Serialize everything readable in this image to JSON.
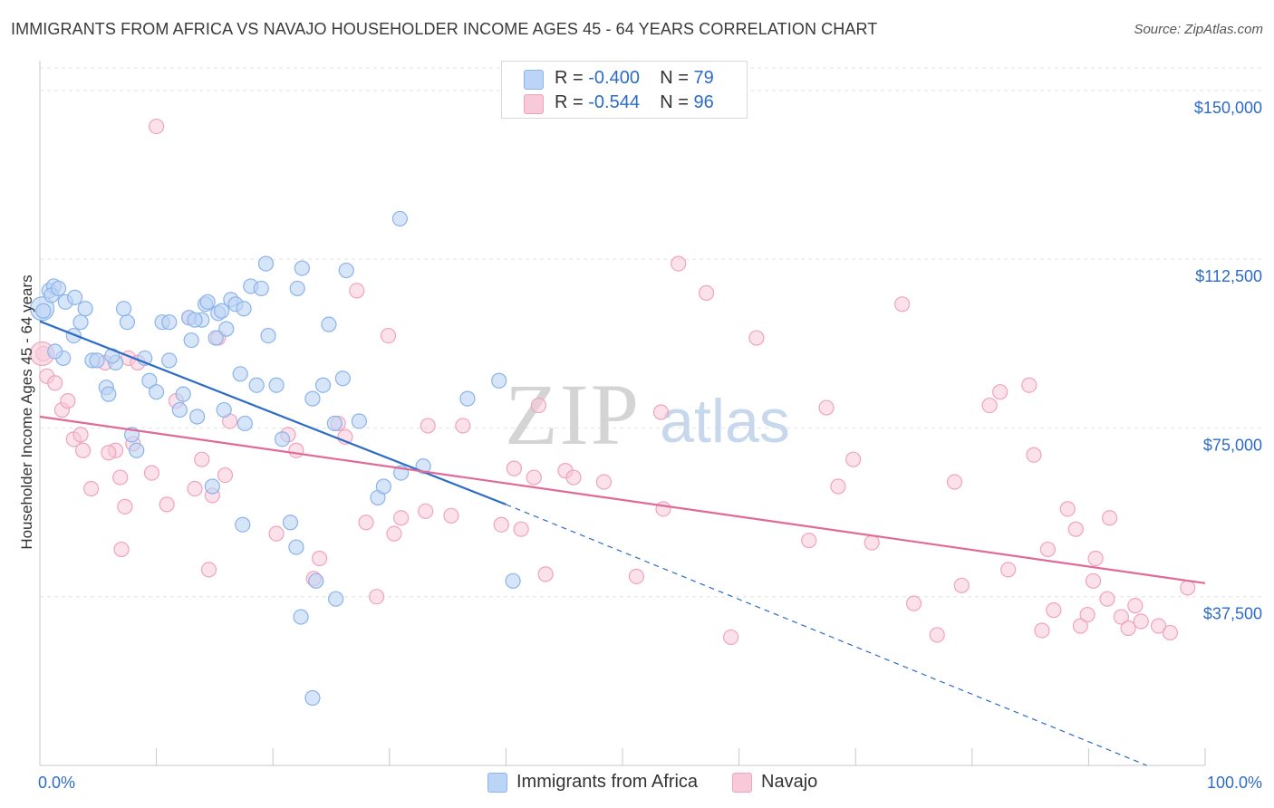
{
  "title": "IMMIGRANTS FROM AFRICA VS NAVAJO HOUSEHOLDER INCOME AGES 45 - 64 YEARS CORRELATION CHART",
  "source": "Source: ZipAtlas.com",
  "watermark": {
    "zip": "ZIP",
    "atlas": "atlas"
  },
  "colors": {
    "blue": "#8ab4ea",
    "blue_fill": "#bcd4f5",
    "blue_line": "#2d6cc4",
    "pink": "#f0a3bd",
    "pink_fill": "#f8c9d8",
    "pink_line": "#e06a97",
    "axis_text": "#2d6cc4"
  },
  "legend": {
    "rows": [
      {
        "r_label": "R =",
        "r_value": "-0.400",
        "n_label": "N =",
        "n_value": "79",
        "color": "#bcd4f5"
      },
      {
        "r_label": "R =",
        "r_value": "-0.544",
        "n_label": "N =",
        "n_value": "96",
        "color": "#f8c9d8"
      }
    ]
  },
  "bottom_legend": {
    "series1": "Immigrants from Africa",
    "series2": "Navajo"
  },
  "chart_data": {
    "type": "scatter",
    "title": "IMMIGRANTS FROM AFRICA VS NAVAJO HOUSEHOLDER INCOME AGES 45 - 64 YEARS CORRELATION CHART",
    "xlabel": "",
    "ylabel": "Householder Income Ages 45 - 64 years",
    "x_tick_labels": [
      "0.0%",
      "100.0%"
    ],
    "y_tick_labels": [
      "$37,500",
      "$75,000",
      "$112,500",
      "$150,000"
    ],
    "y_ticks": [
      37500,
      75000,
      112500,
      150000
    ],
    "xlim": [
      0,
      100
    ],
    "ylim": [
      0,
      155000
    ],
    "grid": true,
    "legend_position": "top-center",
    "series": [
      {
        "name": "Immigrants from Africa",
        "color": "#8ab4ea",
        "R": -0.4,
        "N": 79,
        "trend": {
          "x0": 0,
          "y0": 98700,
          "x1": 40,
          "y1": 58000,
          "dash_to_x": 95,
          "dash_to_y": 0
        },
        "points": [
          [
            0.3,
            101000
          ],
          [
            0.8,
            105500
          ],
          [
            1.2,
            106500
          ],
          [
            1.0,
            104500
          ],
          [
            1.6,
            106000
          ],
          [
            2.2,
            103000
          ],
          [
            2.0,
            90500
          ],
          [
            3.0,
            104000
          ],
          [
            3.5,
            98500
          ],
          [
            3.9,
            101500
          ],
          [
            2.9,
            95500
          ],
          [
            1.3,
            92000
          ],
          [
            4.5,
            90000
          ],
          [
            4.9,
            90000
          ],
          [
            5.7,
            84000
          ],
          [
            5.9,
            82500
          ],
          [
            6.5,
            89500
          ],
          [
            7.2,
            101500
          ],
          [
            7.5,
            98500
          ],
          [
            9.0,
            90500
          ],
          [
            9.4,
            85500
          ],
          [
            7.9,
            73500
          ],
          [
            8.3,
            70000
          ],
          [
            10.0,
            83000
          ],
          [
            10.5,
            98500
          ],
          [
            11.1,
            98500
          ],
          [
            11.1,
            90000
          ],
          [
            12.0,
            79000
          ],
          [
            12.3,
            82500
          ],
          [
            12.8,
            99500
          ],
          [
            13.0,
            94500
          ],
          [
            13.5,
            77500
          ],
          [
            14.2,
            102500
          ],
          [
            14.4,
            103000
          ],
          [
            15.3,
            100500
          ],
          [
            15.6,
            101000
          ],
          [
            15.1,
            95000
          ],
          [
            16.0,
            97000
          ],
          [
            16.4,
            103500
          ],
          [
            16.8,
            102500
          ],
          [
            17.2,
            87000
          ],
          [
            15.8,
            79000
          ],
          [
            17.6,
            76000
          ],
          [
            18.1,
            106500
          ],
          [
            18.6,
            84500
          ],
          [
            19.0,
            106000
          ],
          [
            19.4,
            111500
          ],
          [
            19.6,
            95500
          ],
          [
            20.3,
            84500
          ],
          [
            20.8,
            72500
          ],
          [
            17.5,
            101500
          ],
          [
            22.1,
            106000
          ],
          [
            22.5,
            110500
          ],
          [
            23.4,
            81500
          ],
          [
            24.3,
            84500
          ],
          [
            24.8,
            98000
          ],
          [
            25.3,
            76000
          ],
          [
            26.0,
            86000
          ],
          [
            26.3,
            110000
          ],
          [
            27.4,
            76500
          ],
          [
            29.0,
            59500
          ],
          [
            30.9,
            121500
          ],
          [
            31.0,
            65000
          ],
          [
            32.9,
            66500
          ],
          [
            21.5,
            54000
          ],
          [
            22.0,
            48500
          ],
          [
            23.7,
            41000
          ],
          [
            25.4,
            37000
          ],
          [
            22.4,
            33000
          ],
          [
            17.4,
            53500
          ],
          [
            14.8,
            62000
          ],
          [
            23.4,
            15000
          ],
          [
            29.5,
            62000
          ],
          [
            39.4,
            85500
          ],
          [
            36.7,
            81500
          ],
          [
            40.6,
            41000
          ],
          [
            13.9,
            99000
          ],
          [
            6.2,
            91000
          ],
          [
            13.3,
            99000
          ]
        ]
      },
      {
        "name": "Navajo",
        "color": "#f0a3bd",
        "R": -0.544,
        "N": 96,
        "trend": {
          "x0": 0,
          "y0": 77500,
          "x1": 100,
          "y1": 40500
        },
        "points": [
          [
            0.3,
            91500
          ],
          [
            0.6,
            86500
          ],
          [
            1.3,
            85000
          ],
          [
            1.9,
            79000
          ],
          [
            2.4,
            81000
          ],
          [
            2.9,
            72500
          ],
          [
            3.5,
            73500
          ],
          [
            3.7,
            70000
          ],
          [
            4.4,
            61500
          ],
          [
            5.6,
            89500
          ],
          [
            6.5,
            70000
          ],
          [
            5.9,
            69500
          ],
          [
            6.9,
            64000
          ],
          [
            7.0,
            48000
          ],
          [
            7.3,
            57500
          ],
          [
            7.6,
            90500
          ],
          [
            8.0,
            71500
          ],
          [
            8.4,
            89500
          ],
          [
            9.6,
            65000
          ],
          [
            10.0,
            142000
          ],
          [
            10.9,
            58000
          ],
          [
            11.7,
            81000
          ],
          [
            12.8,
            99500
          ],
          [
            13.3,
            61500
          ],
          [
            13.9,
            68000
          ],
          [
            14.5,
            43500
          ],
          [
            14.8,
            60000
          ],
          [
            15.3,
            95000
          ],
          [
            15.9,
            64500
          ],
          [
            16.3,
            76500
          ],
          [
            20.3,
            51500
          ],
          [
            21.3,
            73500
          ],
          [
            22.0,
            70000
          ],
          [
            23.5,
            41500
          ],
          [
            24.0,
            46000
          ],
          [
            25.6,
            76000
          ],
          [
            26.2,
            73000
          ],
          [
            27.2,
            105500
          ],
          [
            28.0,
            54000
          ],
          [
            28.9,
            37500
          ],
          [
            29.9,
            95500
          ],
          [
            30.4,
            51500
          ],
          [
            31.0,
            55000
          ],
          [
            33.1,
            56500
          ],
          [
            33.3,
            75500
          ],
          [
            35.3,
            55500
          ],
          [
            36.3,
            75500
          ],
          [
            39.6,
            53500
          ],
          [
            40.7,
            66000
          ],
          [
            41.3,
            52500
          ],
          [
            42.4,
            64000
          ],
          [
            42.8,
            80000
          ],
          [
            43.4,
            42500
          ],
          [
            45.1,
            65500
          ],
          [
            45.8,
            64000
          ],
          [
            48.4,
            63000
          ],
          [
            51.2,
            42000
          ],
          [
            53.3,
            78500
          ],
          [
            53.5,
            57000
          ],
          [
            54.8,
            111500
          ],
          [
            57.2,
            105000
          ],
          [
            59.3,
            28500
          ],
          [
            61.5,
            95000
          ],
          [
            66.0,
            50000
          ],
          [
            67.5,
            79500
          ],
          [
            68.5,
            62000
          ],
          [
            69.8,
            68000
          ],
          [
            71.4,
            49500
          ],
          [
            74.0,
            102500
          ],
          [
            75.0,
            36000
          ],
          [
            77.0,
            29000
          ],
          [
            78.5,
            63000
          ],
          [
            79.1,
            40000
          ],
          [
            81.5,
            80000
          ],
          [
            82.4,
            83000
          ],
          [
            83.1,
            43500
          ],
          [
            84.9,
            84500
          ],
          [
            85.3,
            69000
          ],
          [
            86.0,
            30000
          ],
          [
            86.5,
            48000
          ],
          [
            87.0,
            34500
          ],
          [
            88.2,
            57000
          ],
          [
            88.9,
            52500
          ],
          [
            89.3,
            31000
          ],
          [
            89.9,
            33500
          ],
          [
            90.4,
            41000
          ],
          [
            90.6,
            46000
          ],
          [
            91.6,
            37000
          ],
          [
            91.8,
            55000
          ],
          [
            92.8,
            33000
          ],
          [
            93.4,
            30500
          ],
          [
            94.0,
            35500
          ],
          [
            94.5,
            32000
          ],
          [
            96.0,
            31000
          ],
          [
            97.0,
            29500
          ],
          [
            98.5,
            39500
          ]
        ]
      }
    ]
  }
}
